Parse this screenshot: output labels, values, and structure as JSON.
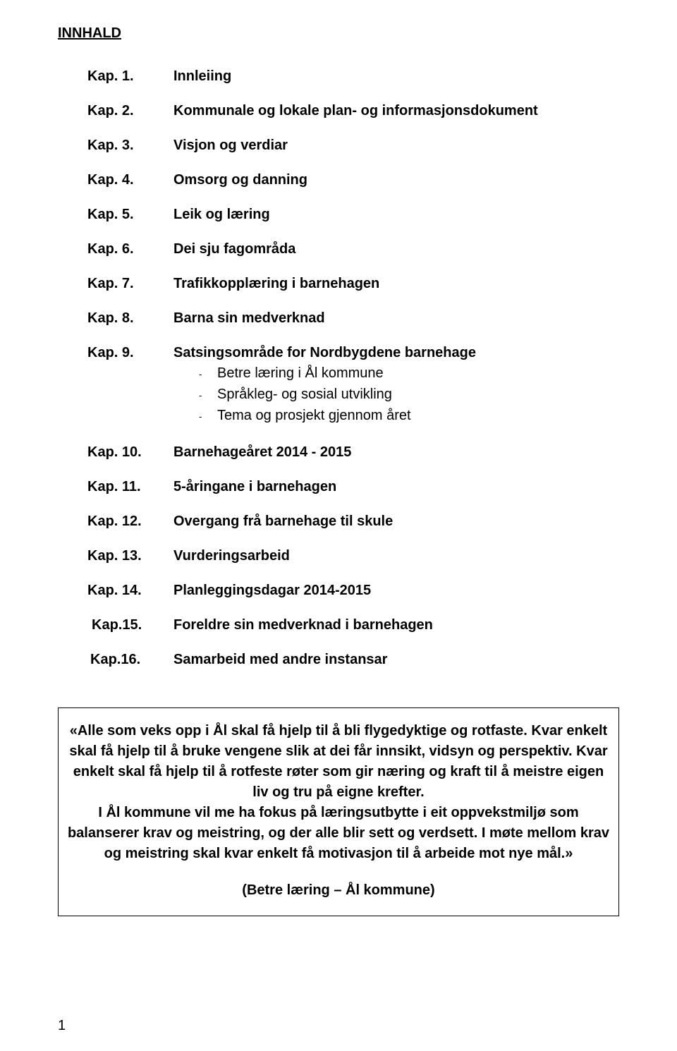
{
  "page": {
    "title": "INNHALD",
    "page_number": "1",
    "background_color": "#ffffff",
    "text_color": "#000000",
    "font_family": "Arial, Helvetica, sans-serif",
    "base_font_size_pt": 15
  },
  "toc": [
    {
      "chapter": "Kap. 1.",
      "title": "Innleiing"
    },
    {
      "chapter": "Kap. 2.",
      "title": "Kommunale og lokale plan- og informasjonsdokument"
    },
    {
      "chapter": "Kap. 3.",
      "title": "Visjon og verdiar"
    },
    {
      "chapter": "Kap. 4.",
      "title": "Omsorg og danning"
    },
    {
      "chapter": "Kap. 5.",
      "title": "Leik og læring"
    },
    {
      "chapter": "Kap. 6.",
      "title": "Dei sju fagområda"
    },
    {
      "chapter": "Kap. 7.",
      "title": "Trafikkopplæring i barnehagen"
    },
    {
      "chapter": "Kap. 8.",
      "title": "Barna sin medverknad"
    },
    {
      "chapter": "Kap. 9.",
      "title": "Satsingsområde for Nordbygdene barnehage",
      "subitems": [
        "Betre læring i Ål kommune",
        "Språkleg- og sosial utvikling",
        "Tema og prosjekt gjennom året"
      ]
    },
    {
      "chapter": "Kap. 10.",
      "title": "Barnehageåret  2014 - 2015"
    },
    {
      "chapter": "Kap. 11.",
      "title": "5-åringane i barnehagen"
    },
    {
      "chapter": "Kap. 12.",
      "title": "Overgang frå barnehage til skule"
    },
    {
      "chapter": "Kap. 13.",
      "title": "Vurderingsarbeid"
    },
    {
      "chapter": "Kap. 14.",
      "title": "Planleggingsdagar 2014-2015"
    },
    {
      "chapter": "Kap.15.",
      "title": "Foreldre sin medverknad i barnehagen",
      "indent": 15
    },
    {
      "chapter": "Kap.16.",
      "title": "Samarbeid med andre instansar",
      "indent": 16
    }
  ],
  "quote": {
    "paragraph": "«Alle som veks opp i Ål skal få hjelp til å bli flygedyktige og rotfaste. Kvar enkelt skal få hjelp til å bruke vengene slik at dei får innsikt, vidsyn og perspektiv. Kvar enkelt skal få hjelp til å rotfeste røter som gir næring og kraft til å meistre eigen liv og tru på eigne krefter.",
    "paragraph2": "I Ål kommune vil me ha fokus på læringsutbytte i eit oppvekstmiljø som balanserer krav og meistring, og der alle blir sett og verdsett. I møte mellom krav og meistring skal kvar enkelt få motivasjon til å arbeide mot nye mål.»",
    "source": "(Betre læring – Ål kommune)",
    "border_color": "#000000"
  }
}
